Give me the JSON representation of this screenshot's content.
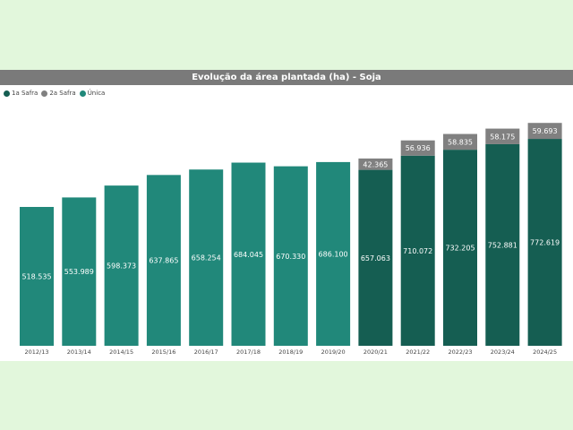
{
  "chart_data": {
    "type": "bar",
    "stacked": true,
    "title": "Evolução da área plantada (ha) - Soja",
    "xlabel": "",
    "ylabel": "",
    "ylim": [
      0,
      850000
    ],
    "grid": false,
    "legend_position": "top-left",
    "categories": [
      "2012/13",
      "2013/14",
      "2014/15",
      "2015/16",
      "2016/17",
      "2017/18",
      "2018/19",
      "2019/20",
      "2020/21",
      "2021/22",
      "2022/23",
      "2023/24",
      "2024/25"
    ],
    "series": [
      {
        "name": "Única",
        "color": "#21887a",
        "values": [
          518535,
          553989,
          598373,
          637865,
          658254,
          684045,
          670330,
          686100,
          null,
          null,
          null,
          null,
          null
        ],
        "labels": [
          "518.535",
          "553.989",
          "598.373",
          "637.865",
          "658.254",
          "684.045",
          "670.330",
          "686.100",
          null,
          null,
          null,
          null,
          null
        ]
      },
      {
        "name": "1a Safra",
        "color": "#155e52",
        "values": [
          null,
          null,
          null,
          null,
          null,
          null,
          null,
          null,
          657063,
          710072,
          732205,
          752881,
          772619
        ],
        "labels": [
          null,
          null,
          null,
          null,
          null,
          null,
          null,
          null,
          "657.063",
          "710.072",
          "732.205",
          "752.881",
          "772.619"
        ]
      },
      {
        "name": "2a Safra",
        "color": "#808080",
        "values": [
          null,
          null,
          null,
          null,
          null,
          null,
          null,
          null,
          42365,
          56936,
          58835,
          58175,
          59693
        ],
        "labels": [
          null,
          null,
          null,
          null,
          null,
          null,
          null,
          null,
          "42.365",
          "56.936",
          "58.835",
          "58.175",
          "59.693"
        ]
      }
    ]
  },
  "legend": [
    {
      "label": "1a Safra",
      "color": "#155e52"
    },
    {
      "label": "2a Safra",
      "color": "#808080"
    },
    {
      "label": "Única",
      "color": "#21887a"
    }
  ],
  "colors": {
    "background": "#e2f7dc",
    "title_bar": "#7a7a7a"
  }
}
